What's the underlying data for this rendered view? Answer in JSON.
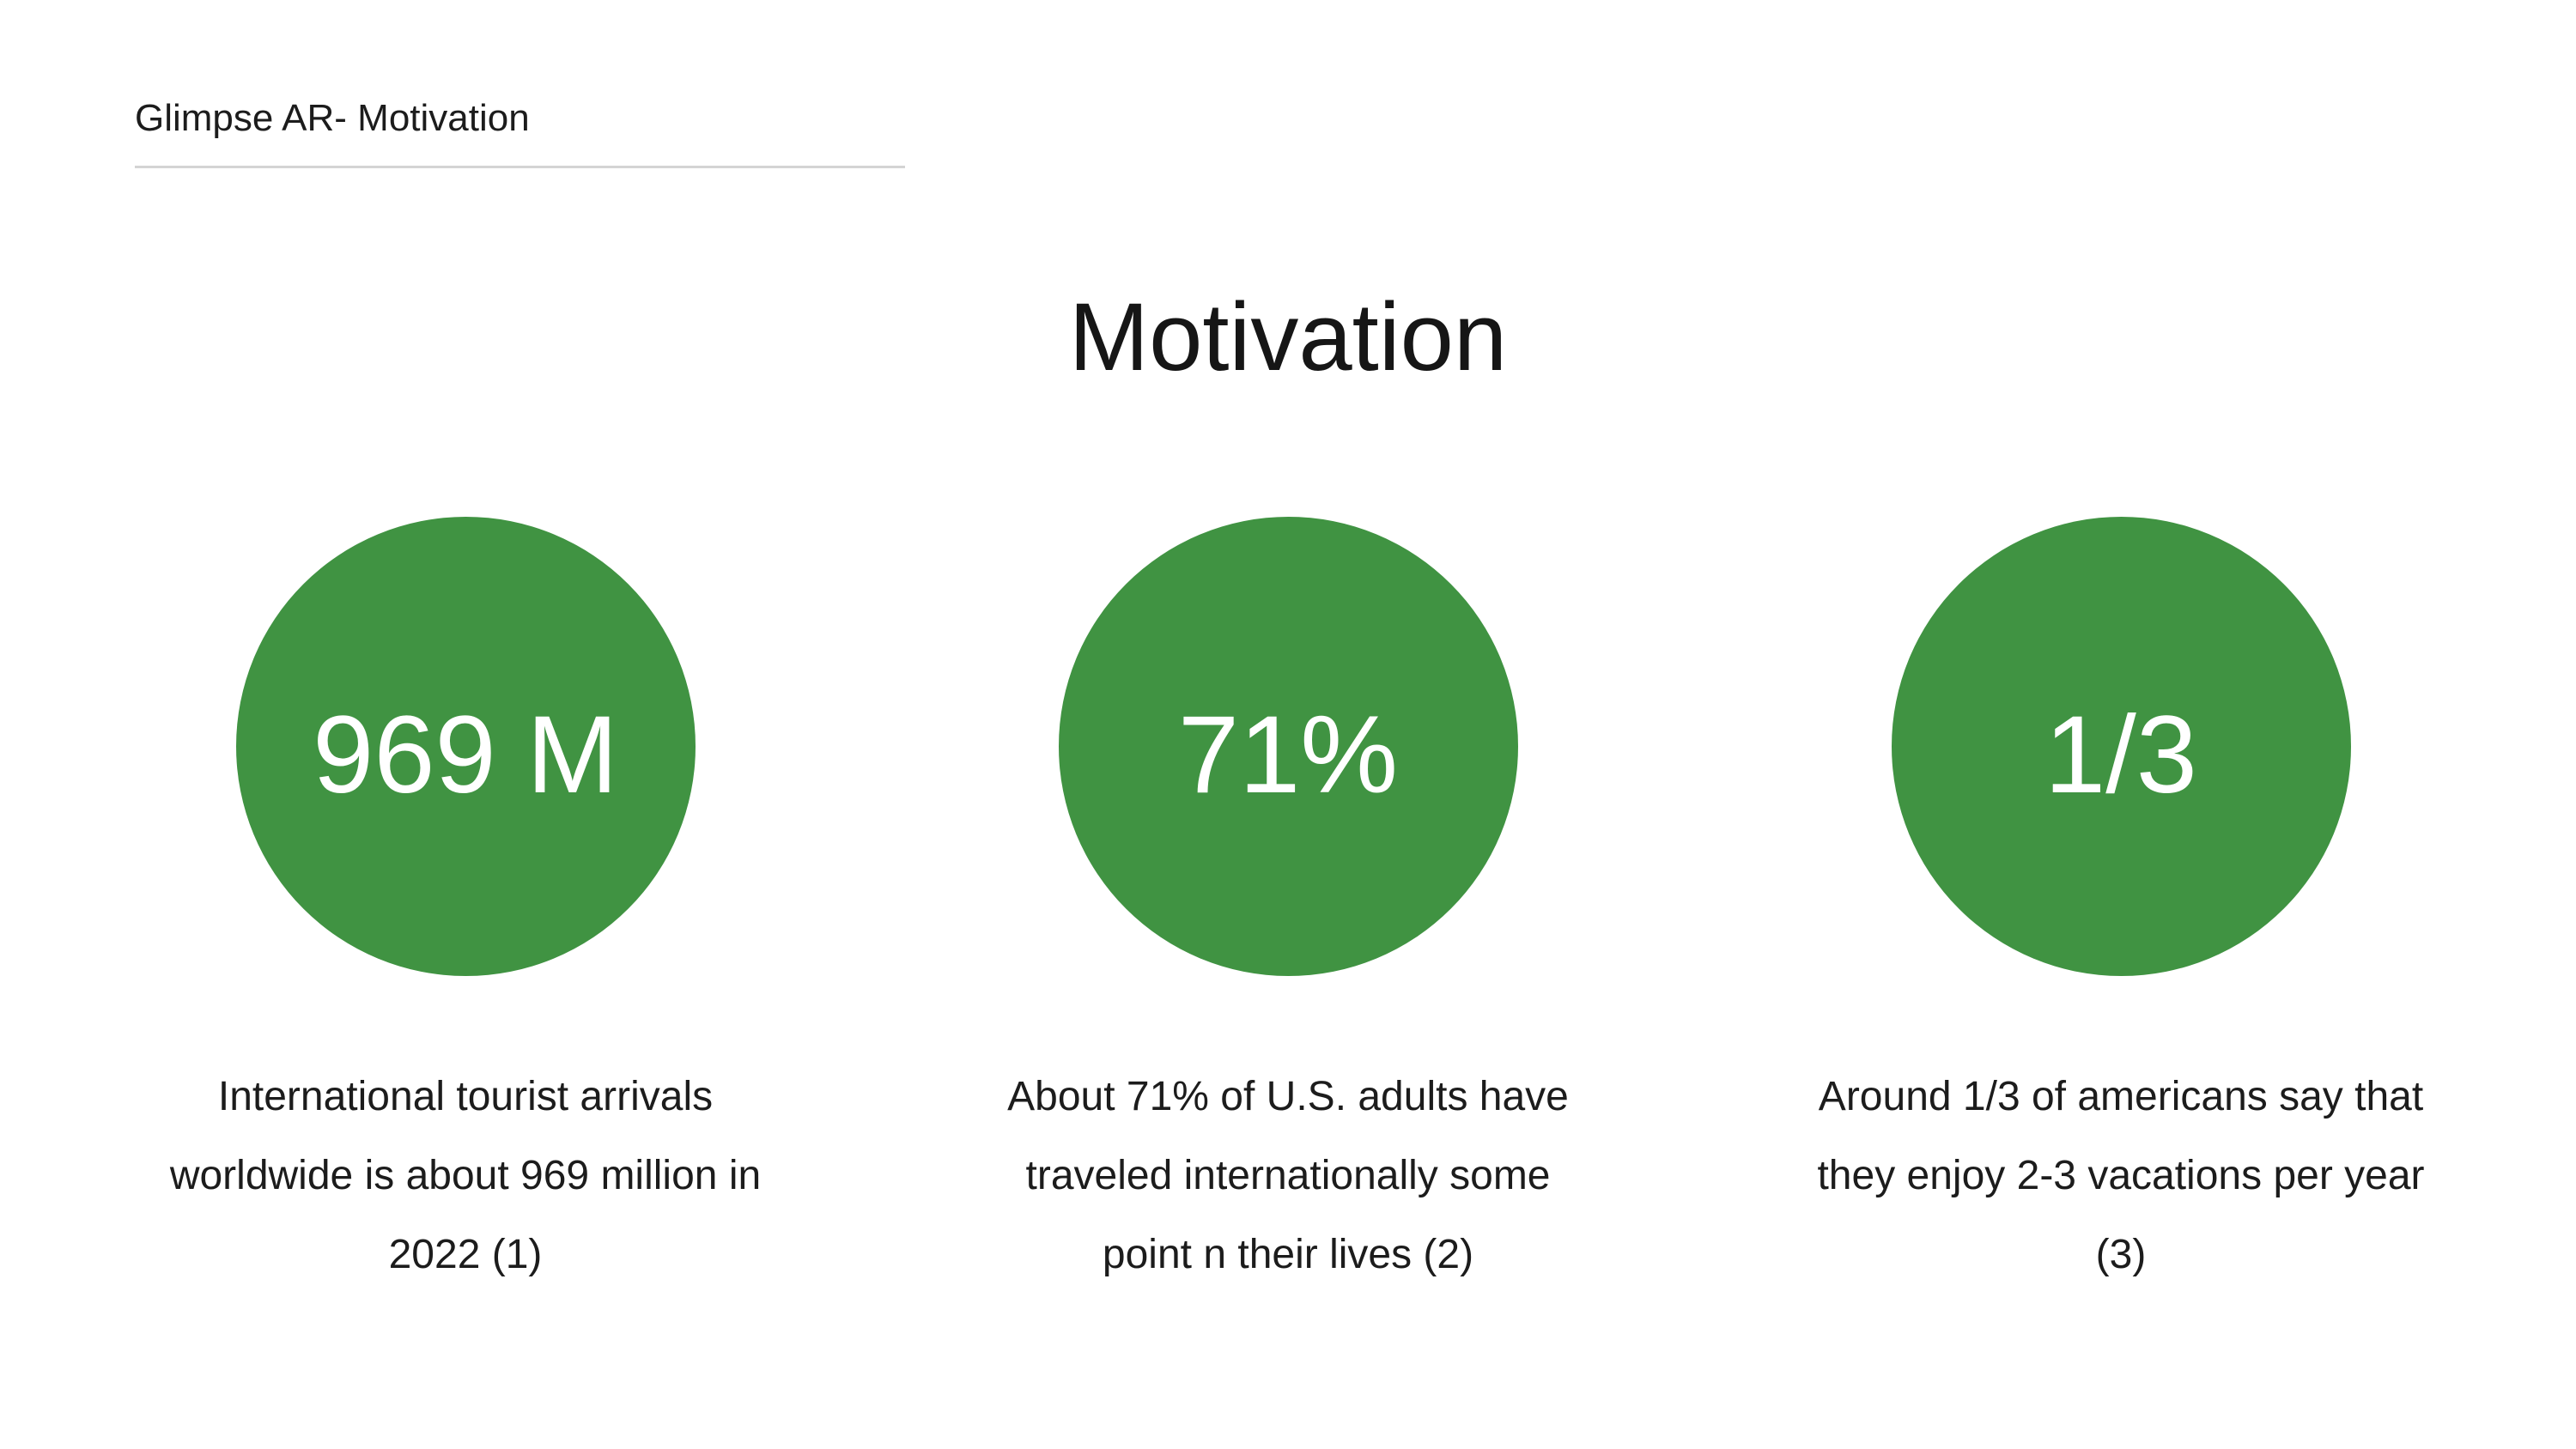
{
  "header": {
    "title": "Glimpse AR- Motivation"
  },
  "slide": {
    "title": "Motivation"
  },
  "stats": [
    {
      "value": "969 M",
      "description_lines": [
        "International tourist arrivals",
        "worldwide is about 969 million in",
        "2022  (1)"
      ]
    },
    {
      "value": "71%",
      "description_lines": [
        "About 71% of U.S. adults have",
        "traveled internationally some",
        "point n their lives (2)"
      ]
    },
    {
      "value": "1/3",
      "description_lines": [
        "Around 1/3 of americans say that",
        "they enjoy 2-3 vacations per year",
        "(3)"
      ]
    }
  ],
  "colors": {
    "circle_fill": "#409342",
    "circle_text": "#ffffff",
    "header_rule": "#d4d4d4"
  }
}
